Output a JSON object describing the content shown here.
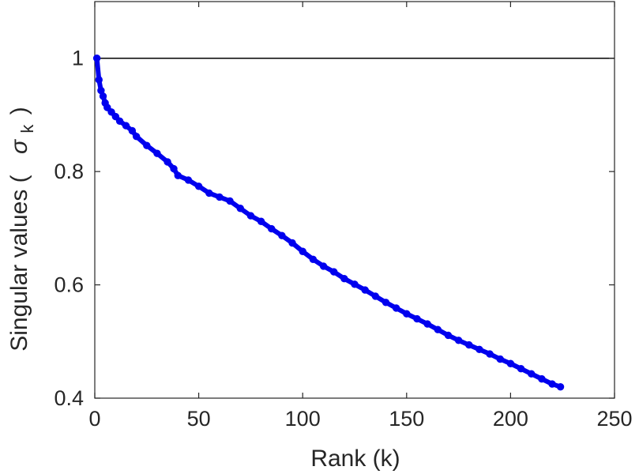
{
  "chart_data": {
    "type": "scatter",
    "xlabel": "Rank (k)",
    "ylabel": {
      "prefix": "Singular values (",
      "symbol": "σ",
      "subscript": "k",
      "suffix": ")"
    },
    "xlim": [
      0,
      250
    ],
    "ylim": [
      0.4,
      1.1
    ],
    "xticks": [
      "0",
      "50",
      "100",
      "150",
      "200",
      "250"
    ],
    "yticks": [
      "0.4",
      "0.6",
      "0.8",
      "1"
    ],
    "reference_line": {
      "y": 1,
      "color": "#000000"
    },
    "grid": false,
    "series": [
      {
        "color": "#0000ee",
        "marker": "circle",
        "points": [
          [
            1,
            1.0
          ],
          [
            2,
            0.962
          ],
          [
            3,
            0.943
          ],
          [
            4,
            0.933
          ],
          [
            5,
            0.921
          ],
          [
            6,
            0.913
          ],
          [
            8,
            0.905
          ],
          [
            10,
            0.897
          ],
          [
            12,
            0.889
          ],
          [
            15,
            0.881
          ],
          [
            18,
            0.872
          ],
          [
            20,
            0.862
          ],
          [
            25,
            0.846
          ],
          [
            30,
            0.832
          ],
          [
            35,
            0.817
          ],
          [
            38,
            0.805
          ],
          [
            40,
            0.793
          ],
          [
            45,
            0.785
          ],
          [
            50,
            0.774
          ],
          [
            55,
            0.762
          ],
          [
            60,
            0.755
          ],
          [
            65,
            0.748
          ],
          [
            70,
            0.735
          ],
          [
            75,
            0.722
          ],
          [
            80,
            0.712
          ],
          [
            85,
            0.699
          ],
          [
            90,
            0.687
          ],
          [
            95,
            0.674
          ],
          [
            100,
            0.659
          ],
          [
            105,
            0.645
          ],
          [
            110,
            0.633
          ],
          [
            115,
            0.623
          ],
          [
            120,
            0.611
          ],
          [
            125,
            0.601
          ],
          [
            130,
            0.591
          ],
          [
            135,
            0.58
          ],
          [
            140,
            0.569
          ],
          [
            145,
            0.559
          ],
          [
            150,
            0.549
          ],
          [
            155,
            0.54
          ],
          [
            160,
            0.531
          ],
          [
            165,
            0.521
          ],
          [
            170,
            0.511
          ],
          [
            175,
            0.502
          ],
          [
            180,
            0.494
          ],
          [
            185,
            0.486
          ],
          [
            190,
            0.478
          ],
          [
            195,
            0.469
          ],
          [
            200,
            0.461
          ],
          [
            205,
            0.452
          ],
          [
            210,
            0.443
          ],
          [
            215,
            0.434
          ],
          [
            220,
            0.425
          ],
          [
            224,
            0.42
          ]
        ]
      }
    ]
  }
}
